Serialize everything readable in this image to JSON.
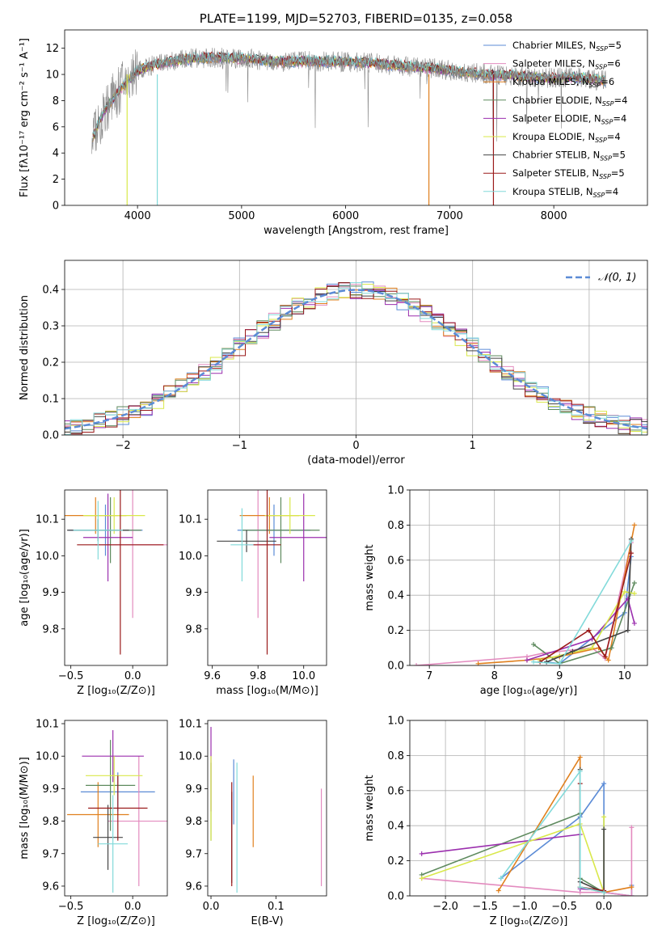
{
  "chart_data": [
    {
      "type": "line",
      "title": "PLATE=1199, MJD=52703, FIBERID=0135, z=0.058",
      "xlabel": "wavelength [Angstrom, rest frame]",
      "ylabel": "Flux [fλ10⁻¹⁷ erg cm⁻² s⁻¹ A⁻¹]",
      "xlim": [
        3300,
        8900
      ],
      "ylim": [
        0,
        13.4
      ],
      "xticks": [
        4000,
        5000,
        6000,
        7000,
        8000
      ],
      "yticks": [
        0,
        2,
        4,
        6,
        8,
        10,
        12
      ],
      "legend_position": "right",
      "legend": [
        {
          "name": "Chabrier MILES, N",
          "sub": "SSP",
          "tail": "=5",
          "color": "#5b8bd6"
        },
        {
          "name": "Salpeter MILES, N",
          "sub": "SSP",
          "tail": "=6",
          "color": "#e38bbf"
        },
        {
          "name": "Kroupa MILES, N",
          "sub": "SSP",
          "tail": "=6",
          "color": "#e0801e"
        },
        {
          "name": "Chabrier ELODIE, N",
          "sub": "SSP",
          "tail": "=4",
          "color": "#5e8a5e"
        },
        {
          "name": "Salpeter ELODIE, N",
          "sub": "SSP",
          "tail": "=4",
          "color": "#9b2fae"
        },
        {
          "name": "Kroupa ELODIE, N",
          "sub": "SSP",
          "tail": "=4",
          "color": "#d9e84a"
        },
        {
          "name": "Chabrier STELIB, N",
          "sub": "SSP",
          "tail": "=5",
          "color": "#444444"
        },
        {
          "name": "Salpeter STELIB, N",
          "sub": "SSP",
          "tail": "=5",
          "color": "#9a1a1a"
        },
        {
          "name": "Kroupa STELIB, N",
          "sub": "SSP",
          "tail": "=4",
          "color": "#82dada"
        }
      ],
      "spectrum_envelope": {
        "x": [
          3560,
          3700,
          3850,
          4000,
          4200,
          4500,
          4800,
          5000,
          5300,
          5600,
          5900,
          6200,
          6500,
          6800,
          7000,
          7200,
          7400,
          7600,
          7800,
          8000,
          8200,
          8400,
          8500
        ],
        "y": [
          5.0,
          7.5,
          9.0,
          10.3,
          10.8,
          11.2,
          11.3,
          11.2,
          11.0,
          11.0,
          11.0,
          10.9,
          10.7,
          10.5,
          10.3,
          10.1,
          10.0,
          9.9,
          9.8,
          9.7,
          9.8,
          9.6,
          9.5
        ]
      },
      "data_color": "#888888"
    },
    {
      "type": "histogram",
      "xlabel": "(data-model)/error",
      "ylabel": "Normed distribution",
      "xlim": [
        -2.5,
        2.5
      ],
      "ylim": [
        0,
        0.48
      ],
      "xticks": [
        -2,
        -1,
        0,
        1,
        2
      ],
      "yticks": [
        0.0,
        0.1,
        0.2,
        0.3,
        0.4
      ],
      "grid": true,
      "legend_position": "top-right",
      "reference_curve": {
        "label": "𝒩(0, 1)",
        "color": "#5b8bd6",
        "mean": 0,
        "sigma": 1
      }
    },
    {
      "type": "scatter",
      "xlabel": "Z [log₁₀(Z/Z⊙)]",
      "ylabel": "age  [log₁₀(age/yr)]",
      "xlim": [
        -0.55,
        0.28
      ],
      "ylim": [
        9.7,
        10.18
      ],
      "xticks": [
        -0.5,
        0.0
      ],
      "yticks": [
        9.8,
        9.9,
        10.0,
        10.1
      ],
      "points": [
        {
          "x": -0.22,
          "y": 10.07,
          "xerr": 0.3,
          "yerr": 0.07,
          "color": "#5b8bd6"
        },
        {
          "x": 0.0,
          "y": 10.03,
          "xerr": 0.3,
          "yerr": 0.2,
          "color": "#e38bbf"
        },
        {
          "x": -0.3,
          "y": 10.11,
          "xerr": 0.25,
          "yerr": 0.05,
          "color": "#e0801e"
        },
        {
          "x": -0.18,
          "y": 10.07,
          "xerr": 0.25,
          "yerr": 0.09,
          "color": "#5e8a5e"
        },
        {
          "x": -0.2,
          "y": 10.05,
          "xerr": 0.2,
          "yerr": 0.12,
          "color": "#9b2fae"
        },
        {
          "x": -0.15,
          "y": 10.11,
          "xerr": 0.25,
          "yerr": 0.05,
          "color": "#d9e84a"
        },
        {
          "x": -0.28,
          "y": 10.07,
          "xerr": 0.25,
          "yerr": 0.03,
          "color": "#444444"
        },
        {
          "x": -0.1,
          "y": 10.03,
          "xerr": 0.35,
          "yerr": 0.3,
          "color": "#9a1a1a"
        },
        {
          "x": -0.28,
          "y": 10.07,
          "xerr": 0.2,
          "yerr": 0.08,
          "color": "#82dada"
        }
      ]
    },
    {
      "type": "scatter",
      "xlabel": "mass [log₁₀(M/M⊙)]",
      "ylabel": "",
      "xlim": [
        9.58,
        10.1
      ],
      "ylim": [
        9.7,
        10.18
      ],
      "xticks": [
        9.6,
        9.8,
        10.0
      ],
      "yticks": [
        9.8,
        9.9,
        10.0,
        10.1
      ],
      "points": [
        {
          "x": 9.87,
          "y": 10.07,
          "xerr": 0.16,
          "yerr": 0.07,
          "color": "#5b8bd6"
        },
        {
          "x": 9.8,
          "y": 10.03,
          "xerr": 0.05,
          "yerr": 0.2,
          "color": "#e38bbf"
        },
        {
          "x": 9.85,
          "y": 10.11,
          "xerr": 0.13,
          "yerr": 0.05,
          "color": "#e0801e"
        },
        {
          "x": 9.9,
          "y": 10.07,
          "xerr": 0.17,
          "yerr": 0.09,
          "color": "#5e8a5e"
        },
        {
          "x": 10.0,
          "y": 10.05,
          "xerr": 0.15,
          "yerr": 0.12,
          "color": "#9b2fae"
        },
        {
          "x": 9.94,
          "y": 10.11,
          "xerr": 0.11,
          "yerr": 0.05,
          "color": "#d9e84a"
        },
        {
          "x": 9.75,
          "y": 10.04,
          "xerr": 0.13,
          "yerr": 0.03,
          "color": "#444444"
        },
        {
          "x": 9.84,
          "y": 10.03,
          "xerr": 0.06,
          "yerr": 0.3,
          "color": "#9a1a1a"
        },
        {
          "x": 9.73,
          "y": 10.03,
          "xerr": 0.05,
          "yerr": 0.1,
          "color": "#82dada"
        }
      ]
    },
    {
      "type": "line",
      "xlabel": "age  [log₁₀(age/yr)]",
      "ylabel": "mass weight",
      "xlim": [
        6.7,
        10.35
      ],
      "ylim": [
        0,
        1
      ],
      "xticks": [
        7,
        8,
        9,
        10
      ],
      "yticks": [
        0.0,
        0.2,
        0.4,
        0.6,
        0.8,
        1.0
      ],
      "grid": true,
      "series": [
        {
          "color": "#5b8bd6",
          "x": [
            8.8,
            9.0,
            10.0,
            10.1
          ],
          "y": [
            0.02,
            0.01,
            0.3,
            0.62
          ]
        },
        {
          "color": "#e38bbf",
          "x": [
            6.8,
            8.5,
            8.75,
            9.5,
            9.7,
            10.1
          ],
          "y": [
            0.0,
            0.05,
            0.07,
            0.1,
            0.04,
            0.7
          ]
        },
        {
          "color": "#e0801e",
          "x": [
            7.75,
            8.5,
            9.0,
            9.6,
            9.75,
            10.15
          ],
          "y": [
            0.01,
            0.03,
            0.05,
            0.1,
            0.03,
            0.8
          ]
        },
        {
          "color": "#5e8a5e",
          "x": [
            8.6,
            9.0,
            9.8,
            10.15
          ],
          "y": [
            0.12,
            0.01,
            0.1,
            0.47
          ]
        },
        {
          "color": "#9b2fae",
          "x": [
            8.5,
            9.5,
            10.05,
            10.15
          ],
          "y": [
            0.03,
            0.15,
            0.38,
            0.24
          ]
        },
        {
          "color": "#d9e84a",
          "x": [
            8.7,
            9.5,
            10.0,
            10.15
          ],
          "y": [
            0.03,
            0.1,
            0.42,
            0.41
          ]
        },
        {
          "color": "#444444",
          "x": [
            8.8,
            9.2,
            10.05,
            10.1
          ],
          "y": [
            0.02,
            0.08,
            0.2,
            0.72
          ]
        },
        {
          "color": "#9a1a1a",
          "x": [
            8.7,
            9.45,
            9.7,
            10.1
          ],
          "y": [
            0.02,
            0.2,
            0.05,
            0.64
          ]
        },
        {
          "color": "#82dada",
          "x": [
            8.6,
            9.0,
            10.1
          ],
          "y": [
            0.02,
            0.01,
            0.71
          ]
        }
      ]
    },
    {
      "type": "scatter",
      "xlabel": "Z [log₁₀(Z/Z⊙)]",
      "ylabel": "mass [log₁₀(M/M⊙)]",
      "xlim": [
        -0.55,
        0.28
      ],
      "ylim": [
        9.57,
        10.11
      ],
      "xticks": [
        -0.5,
        0.0
      ],
      "yticks": [
        9.6,
        9.7,
        9.8,
        9.9,
        10.0,
        10.1
      ],
      "points": [
        {
          "x": -0.12,
          "y": 9.89,
          "xerr": 0.3,
          "yerr": 0.06,
          "color": "#5b8bd6"
        },
        {
          "x": 0.05,
          "y": 9.8,
          "xerr": 0.25,
          "yerr": 0.2,
          "color": "#e38bbf"
        },
        {
          "x": -0.28,
          "y": 9.82,
          "xerr": 0.25,
          "yerr": 0.1,
          "color": "#e0801e"
        },
        {
          "x": -0.18,
          "y": 9.91,
          "xerr": 0.2,
          "yerr": 0.14,
          "color": "#5e8a5e"
        },
        {
          "x": -0.16,
          "y": 10.0,
          "xerr": 0.25,
          "yerr": 0.08,
          "color": "#9b2fae"
        },
        {
          "x": -0.15,
          "y": 9.94,
          "xerr": 0.23,
          "yerr": 0.06,
          "color": "#d9e84a"
        },
        {
          "x": -0.2,
          "y": 9.75,
          "xerr": 0.12,
          "yerr": 0.1,
          "color": "#444444"
        },
        {
          "x": -0.12,
          "y": 9.84,
          "xerr": 0.24,
          "yerr": 0.1,
          "color": "#9a1a1a"
        },
        {
          "x": -0.16,
          "y": 9.73,
          "xerr": 0.12,
          "yerr": 0.15,
          "color": "#82dada"
        }
      ]
    },
    {
      "type": "scatter",
      "xlabel": "E(B-V)",
      "ylabel": "",
      "xlim": [
        -0.005,
        0.178
      ],
      "ylim": [
        9.57,
        10.11
      ],
      "xticks": [
        0.0,
        0.1
      ],
      "yticks": [
        9.6,
        9.7,
        9.8,
        9.9,
        10.0,
        10.1
      ],
      "points": [
        {
          "x": 0.035,
          "y": 9.89,
          "yerr": 0.1,
          "color": "#5b8bd6"
        },
        {
          "x": 0.17,
          "y": 9.75,
          "yerr": 0.15,
          "color": "#e38bbf"
        },
        {
          "x": 0.065,
          "y": 9.83,
          "yerr": 0.11,
          "color": "#e0801e"
        },
        {
          "x": 0.0,
          "y": 9.86,
          "yerr": 0.12,
          "color": "#5e8a5e"
        },
        {
          "x": 0.0,
          "y": 9.96,
          "yerr": 0.13,
          "color": "#9b2fae"
        },
        {
          "x": 0.0,
          "y": 9.87,
          "yerr": 0.13,
          "color": "#d9e84a"
        },
        {
          "x": 0.032,
          "y": 9.75,
          "yerr": 0.14,
          "color": "#444444"
        },
        {
          "x": 0.032,
          "y": 9.76,
          "yerr": 0.16,
          "color": "#9a1a1a"
        },
        {
          "x": 0.04,
          "y": 9.78,
          "yerr": 0.2,
          "color": "#82dada"
        }
      ]
    },
    {
      "type": "line",
      "xlabel": "Z [log₁₀(Z/Z⊙)]",
      "ylabel": "mass weight",
      "xlim": [
        -2.45,
        0.55
      ],
      "ylim": [
        0,
        1
      ],
      "xticks": [
        -2.0,
        -1.5,
        -1.0,
        -0.5,
        0.0
      ],
      "yticks": [
        0.0,
        0.2,
        0.4,
        0.6,
        0.8,
        1.0
      ],
      "grid": true,
      "series": [
        {
          "color": "#5b8bd6",
          "x": [
            -1.3,
            -0.3,
            0.0,
            0.0,
            0.35,
            0.35
          ],
          "y": [
            0.1,
            0.45,
            0.64,
            0.02,
            0.0,
            0.06
          ]
        },
        {
          "color": "#e38bbf",
          "x": [
            -2.3,
            -0.3,
            0.0,
            0.35,
            0.35
          ],
          "y": [
            0.1,
            0.02,
            0.02,
            0.0,
            0.39
          ]
        },
        {
          "color": "#e0801e",
          "x": [
            -1.33,
            -0.3,
            -0.3,
            0.0,
            0.35
          ],
          "y": [
            0.03,
            0.79,
            0.05,
            0.02,
            0.05
          ]
        },
        {
          "color": "#5e8a5e",
          "x": [
            -2.3,
            -0.3,
            -0.3,
            0.0
          ],
          "y": [
            0.12,
            0.47,
            0.1,
            0.02
          ]
        },
        {
          "color": "#9b2fae",
          "x": [
            -2.3,
            -0.3,
            -0.3,
            0.0
          ],
          "y": [
            0.24,
            0.35,
            0.04,
            0.03
          ]
        },
        {
          "color": "#d9e84a",
          "x": [
            -2.3,
            -0.3,
            0.0,
            0.0
          ],
          "y": [
            0.1,
            0.41,
            0.02,
            0.45
          ]
        },
        {
          "color": "#444444",
          "x": [
            -0.3,
            -0.3,
            0.0,
            0.0
          ],
          "y": [
            0.72,
            0.08,
            0.02,
            0.38
          ]
        },
        {
          "color": "#9a1a1a",
          "x": [
            -0.3,
            -0.3,
            0.0
          ],
          "y": [
            0.64,
            0.05,
            0.03
          ]
        },
        {
          "color": "#82dada",
          "x": [
            -1.3,
            -0.3,
            -0.3,
            0.0
          ],
          "y": [
            0.1,
            0.71,
            0.05,
            0.02
          ]
        }
      ]
    }
  ]
}
